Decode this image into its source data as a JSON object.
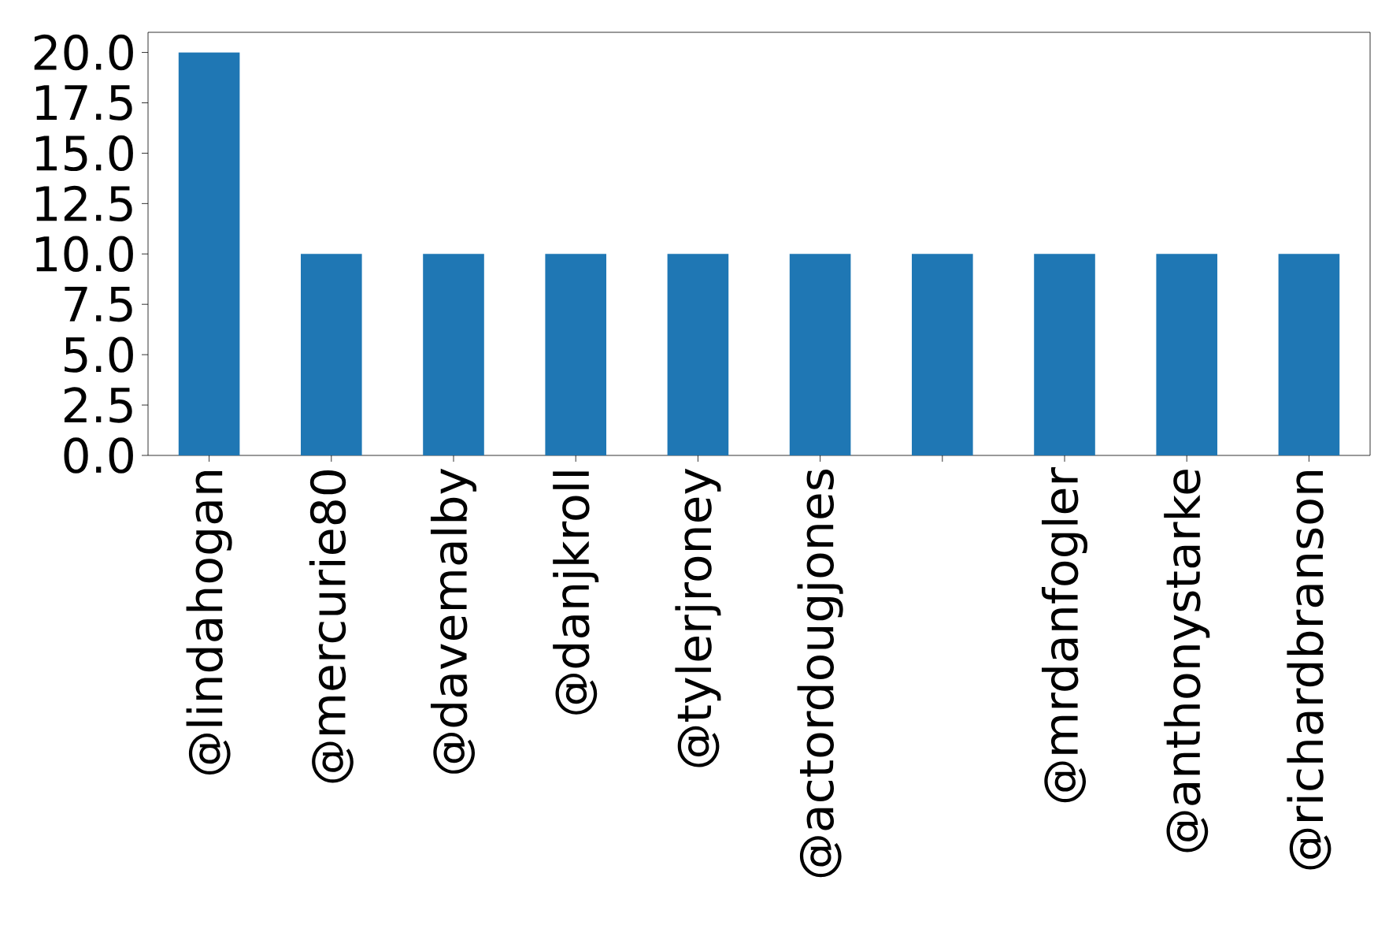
{
  "chart_data": {
    "type": "bar",
    "categories": [
      "@lindahogan",
      "@mercurie80",
      "@davemalby",
      "@danjkroll",
      "@tylerjroney",
      "@actordougjones",
      null,
      "@mrdanfogler",
      "@anthonystarke",
      "@richardbranson"
    ],
    "values": [
      20,
      10,
      10,
      10,
      10,
      10,
      10,
      10,
      10,
      10
    ],
    "color": "#1f77b4",
    "ylim": [
      0,
      21
    ],
    "yticks": [
      {
        "value": 0,
        "label": "0.0"
      },
      {
        "value": 2.5,
        "label": "2.5"
      },
      {
        "value": 5,
        "label": "5.0"
      },
      {
        "value": 7.5,
        "label": "7.5"
      },
      {
        "value": 10,
        "label": "10.0"
      },
      {
        "value": 12.5,
        "label": "12.5"
      },
      {
        "value": 15,
        "label": "15.0"
      },
      {
        "value": 17.5,
        "label": "17.5"
      },
      {
        "value": 20,
        "label": "20.0"
      }
    ],
    "grid": false
  }
}
